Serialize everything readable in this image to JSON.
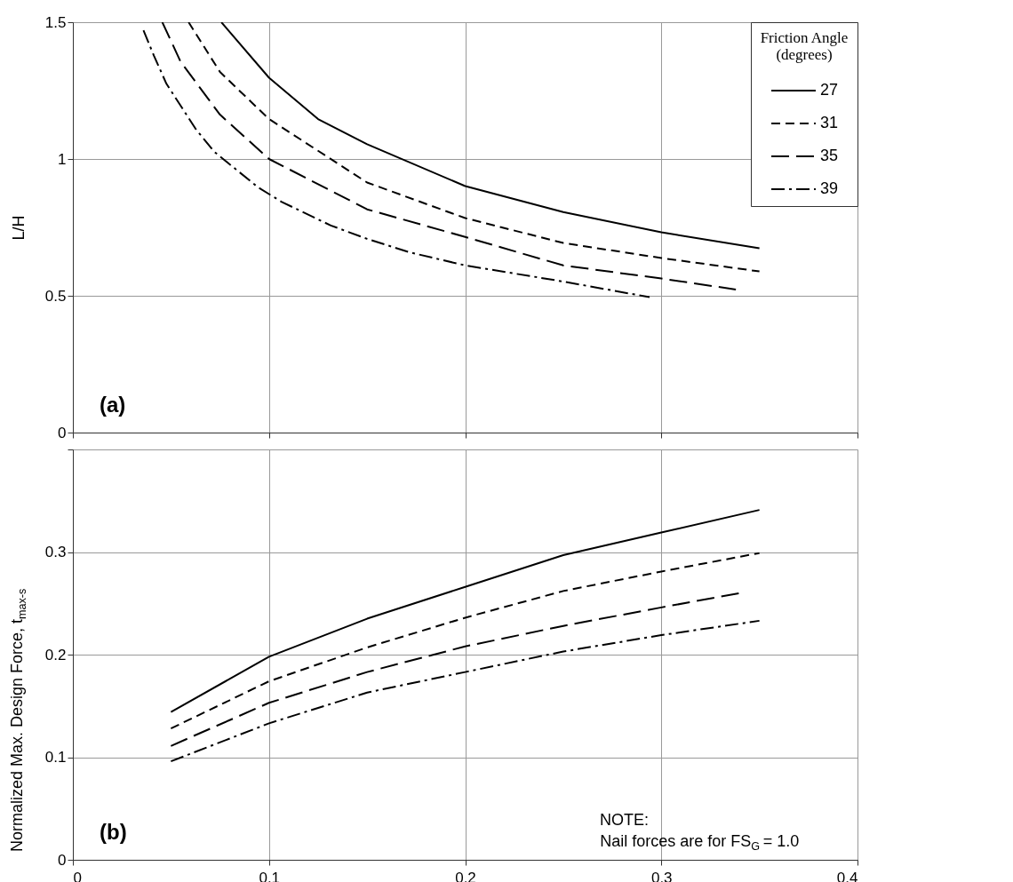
{
  "chart_data": [
    {
      "type": "line",
      "ylabel": "L/H",
      "legend_title": "Friction Angle\n(degrees)",
      "legend": "top right",
      "grid": true,
      "tick_labels": "y",
      "xlim": [
        0,
        0.4
      ],
      "xticks": [
        0,
        0.1,
        0.2,
        0.3,
        0.4
      ],
      "ylim": [
        0,
        1.5
      ],
      "yticks": [
        0,
        0.5,
        1,
        1.5
      ],
      "annotations": [
        "(a)"
      ],
      "series": [
        {
          "name": "27",
          "color": "#000000",
          "line_style": "solid",
          "x": [
            0.0757,
            0.1,
            0.125,
            0.15,
            0.2,
            0.25,
            0.3,
            0.35
          ],
          "values": [
            1.5,
            1.297,
            1.146,
            1.054,
            0.901,
            0.806,
            0.732,
            0.674
          ]
        },
        {
          "name": "31",
          "color": "#000000",
          "line_style": "dashed",
          "x": [
            0.059,
            0.075,
            0.1,
            0.15,
            0.2,
            0.25,
            0.3,
            0.35
          ],
          "values": [
            1.5,
            1.318,
            1.146,
            0.914,
            0.784,
            0.693,
            0.638,
            0.589
          ]
        },
        {
          "name": "35",
          "color": "#000000",
          "line_style": "longdash",
          "x": [
            0.0456,
            0.0549,
            0.075,
            0.1,
            0.15,
            0.2,
            0.25,
            0.3,
            0.338
          ],
          "values": [
            1.5,
            1.356,
            1.162,
            1.0,
            0.816,
            0.715,
            0.611,
            0.563,
            0.523
          ]
        },
        {
          "name": "39",
          "color": "#000000",
          "line_style": "dashdot",
          "x": [
            0.036,
            0.0413,
            0.0477,
            0.0628,
            0.072,
            0.0943,
            0.1065,
            0.1315,
            0.15,
            0.1716,
            0.2,
            0.25,
            0.294
          ],
          "values": [
            1.47,
            1.378,
            1.275,
            1.108,
            1.027,
            0.897,
            0.843,
            0.757,
            0.708,
            0.659,
            0.611,
            0.552,
            0.495
          ]
        }
      ]
    },
    {
      "type": "line",
      "ylabel": "Normalized Max. Design Force, t$_{max-s}$",
      "grid": true,
      "xlim": [
        0,
        0.4
      ],
      "xticks": [
        0,
        0.1,
        0.2,
        0.3,
        0.4
      ],
      "ylim": [
        0,
        0.4
      ],
      "yticks": [
        0,
        0.1,
        0.2,
        0.3,
        {
          "value": 0.4,
          "label": null
        }
      ],
      "annotations": [
        "(b)",
        "NOTE:\nNail forces are for FS$_{G}$ = 1.0"
      ],
      "series": [
        {
          "color": "#000000",
          "line_style": "solid",
          "x": [
            0.05,
            0.1,
            0.15,
            0.2,
            0.25,
            0.3,
            0.35
          ],
          "values": [
            0.144,
            0.198,
            0.235,
            0.266,
            0.297,
            0.319,
            0.341
          ]
        },
        {
          "color": "#000000",
          "line_style": "dashed",
          "x": [
            0.05,
            0.1,
            0.15,
            0.2,
            0.25,
            0.3,
            0.35
          ],
          "values": [
            0.128,
            0.174,
            0.207,
            0.236,
            0.262,
            0.281,
            0.299
          ]
        },
        {
          "color": "#000000",
          "line_style": "longdash",
          "x": [
            0.05,
            0.1,
            0.15,
            0.2,
            0.25,
            0.3,
            0.34
          ],
          "values": [
            0.111,
            0.153,
            0.183,
            0.208,
            0.228,
            0.246,
            0.26
          ]
        },
        {
          "color": "#000000",
          "line_style": "dashdot",
          "x": [
            0.05,
            0.1,
            0.15,
            0.2,
            0.25,
            0.3,
            0.35
          ],
          "values": [
            0.096,
            0.133,
            0.163,
            0.183,
            0.203,
            0.219,
            0.233
          ]
        }
      ]
    }
  ]
}
